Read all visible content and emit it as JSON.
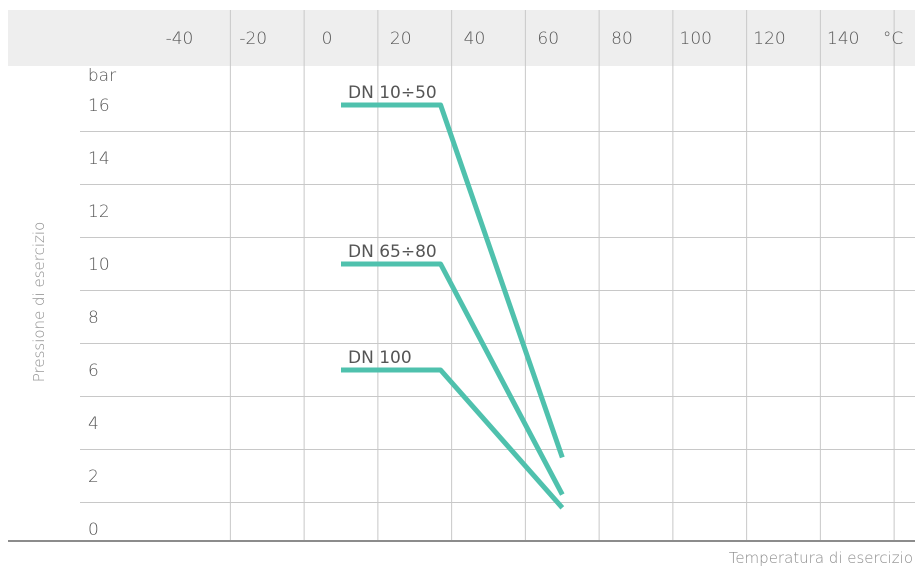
{
  "chart_data": {
    "type": "line",
    "xlabel": "Temperatura di esercizio",
    "ylabel": "Pressione di esercizio",
    "x_unit": "°C",
    "y_unit": "bar",
    "x_ticks": [
      -40,
      -20,
      0,
      20,
      40,
      60,
      80,
      100,
      120,
      140
    ],
    "y_ticks": [
      0,
      2,
      4,
      6,
      8,
      10,
      12,
      14,
      16
    ],
    "xlim": [
      -50,
      150
    ],
    "ylim": [
      -0.5,
      17
    ],
    "grid": true,
    "colors": {
      "line": "#4fc1ad",
      "header": "#eeeeee",
      "grid": "#c8c8c8",
      "baseline": "#8c8c8c"
    },
    "series": [
      {
        "name": "DN 10÷50",
        "x": [
          0,
          27,
          60
        ],
        "y": [
          16,
          16,
          2.7
        ]
      },
      {
        "name": "DN 65÷80",
        "x": [
          0,
          27,
          60
        ],
        "y": [
          10,
          10,
          1.3
        ]
      },
      {
        "name": "DN 100",
        "x": [
          0,
          27,
          60
        ],
        "y": [
          6,
          6,
          0.8
        ]
      }
    ]
  }
}
